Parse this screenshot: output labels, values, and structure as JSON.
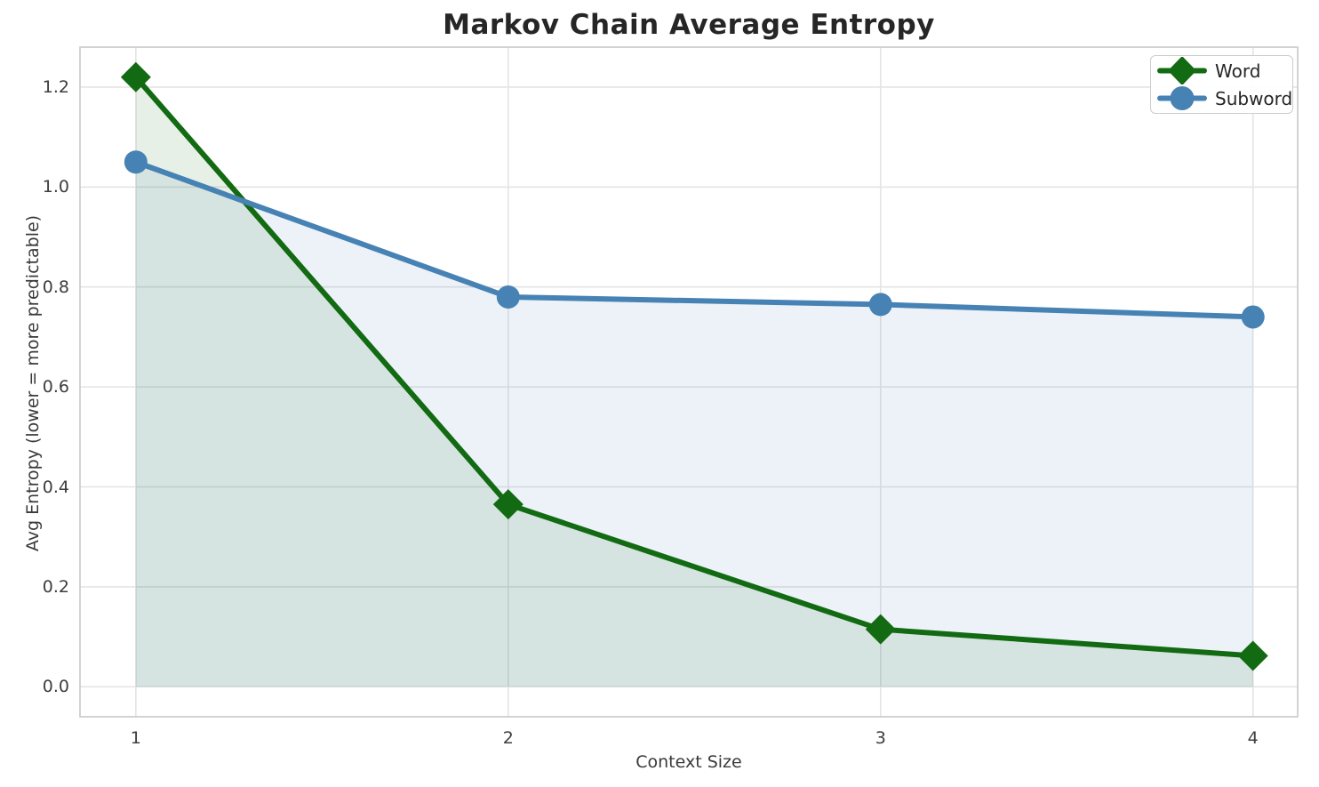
{
  "figure": {
    "background": "#ffffff",
    "title_color": "#262626"
  },
  "chart_data": {
    "type": "line",
    "title": "Markov Chain Average Entropy",
    "xlabel": "Context Size",
    "ylabel": "Avg Entropy (lower = more predictable)",
    "x": [
      1,
      2,
      3,
      4
    ],
    "series": [
      {
        "name": "Word",
        "values": [
          1.22,
          0.365,
          0.115,
          0.062
        ],
        "color": "#126a12",
        "marker": "diamond",
        "fill_to_zero": true
      },
      {
        "name": "Subword",
        "values": [
          1.05,
          0.78,
          0.765,
          0.74
        ],
        "color": "#4682b4",
        "marker": "circle",
        "fill_to_zero": true
      }
    ],
    "xticks": [
      1,
      2,
      3,
      4
    ],
    "xtick_labels": [
      "1",
      "2",
      "3",
      "4"
    ],
    "yticks": [
      0.0,
      0.2,
      0.4,
      0.6,
      0.8,
      1.0,
      1.2
    ],
    "ytick_labels": [
      "0.0",
      "0.2",
      "0.4",
      "0.6",
      "0.8",
      "1.0",
      "1.2"
    ],
    "xlim": [
      0.85,
      4.12
    ],
    "ylim": [
      -0.06,
      1.28
    ],
    "grid": true,
    "grid_color": "#e4e4e4",
    "spine_color": "#c8c8c8",
    "fill_opacity": 0.1,
    "line_width": 6,
    "marker_size": 15,
    "legend": {
      "position": "upper right",
      "entries": [
        "Word",
        "Subword"
      ]
    }
  }
}
